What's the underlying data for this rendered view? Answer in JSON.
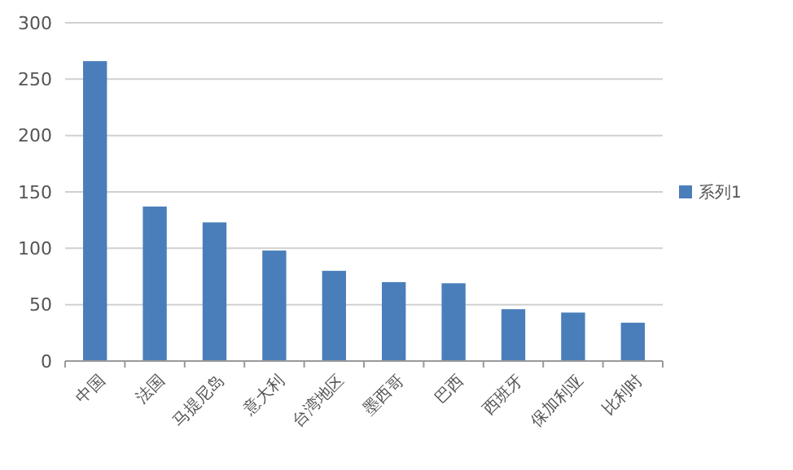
{
  "chart_data": {
    "type": "bar",
    "categories": [
      "中国",
      "法国",
      "马提尼岛",
      "意大利",
      "台湾地区",
      "墨西哥",
      "巴西",
      "西班牙",
      "保加利亚",
      "比利时"
    ],
    "series": [
      {
        "name": "系列1",
        "color": "#4a7ebb",
        "values": [
          266,
          137,
          123,
          98,
          80,
          70,
          69,
          46,
          43,
          34
        ]
      }
    ],
    "ylim": [
      0,
      300
    ],
    "yticks": [
      0,
      50,
      100,
      150,
      200,
      250,
      300
    ],
    "grid": "y",
    "legend": "right"
  }
}
